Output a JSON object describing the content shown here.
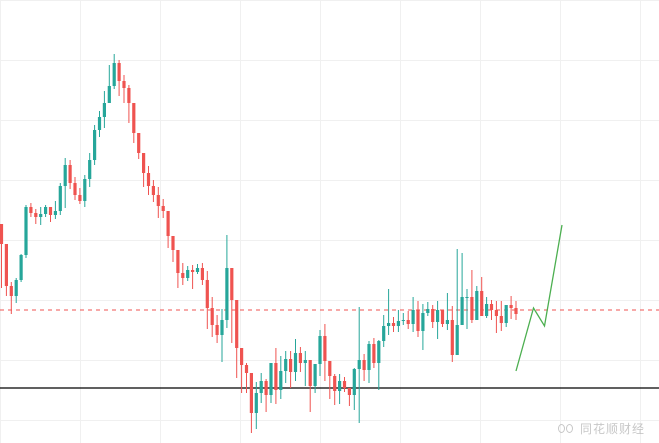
{
  "chart_data": {
    "type": "candlestick",
    "title": "",
    "xlabel": "",
    "ylabel": "",
    "grid": true,
    "ylim": [
      0,
      443
    ],
    "colors": {
      "up": "#26a69a",
      "down": "#ef5350",
      "grid": "#f0f0f0",
      "reference_line": "#ef5350",
      "support_line": "#000000",
      "projection": "#4caf50"
    },
    "reference_line": {
      "value": 133,
      "style": "dashed"
    },
    "support_line": {
      "value": 55,
      "style": "solid"
    },
    "candles": [
      [
        219,
        199,
        205,
        155
      ],
      [
        199,
        157,
        173,
        147
      ],
      [
        157,
        147,
        161,
        129
      ],
      [
        147,
        163,
        165,
        140
      ],
      [
        163,
        188,
        189,
        161
      ],
      [
        188,
        236,
        238,
        185
      ],
      [
        236,
        230,
        240,
        226
      ],
      [
        230,
        226,
        234,
        219
      ],
      [
        226,
        229,
        236,
        218
      ],
      [
        229,
        236,
        238,
        226
      ],
      [
        236,
        228,
        232,
        221
      ],
      [
        228,
        232,
        242,
        224
      ],
      [
        232,
        257,
        260,
        228
      ],
      [
        257,
        278,
        285,
        235
      ],
      [
        278,
        260,
        283,
        254
      ],
      [
        260,
        248,
        266,
        243
      ],
      [
        248,
        242,
        255,
        239
      ],
      [
        242,
        264,
        268,
        236
      ],
      [
        264,
        283,
        290,
        256
      ],
      [
        283,
        313,
        318,
        278
      ],
      [
        313,
        326,
        332,
        306
      ],
      [
        326,
        340,
        352,
        315
      ],
      [
        340,
        357,
        378,
        342
      ],
      [
        357,
        380,
        389,
        354
      ],
      [
        380,
        362,
        383,
        347
      ],
      [
        362,
        355,
        368,
        340
      ],
      [
        355,
        340,
        358,
        320
      ],
      [
        340,
        310,
        326,
        300
      ],
      [
        310,
        290,
        305,
        284
      ],
      [
        290,
        270,
        286,
        256
      ],
      [
        270,
        257,
        277,
        248
      ],
      [
        257,
        248,
        263,
        241
      ],
      [
        248,
        237,
        256,
        225
      ],
      [
        237,
        232,
        244,
        225
      ],
      [
        232,
        207,
        219,
        195
      ],
      [
        207,
        193,
        202,
        181
      ],
      [
        193,
        170,
        180,
        155
      ],
      [
        170,
        165,
        180,
        158
      ],
      [
        165,
        173,
        177,
        162
      ],
      [
        173,
        171,
        178,
        154
      ],
      [
        171,
        175,
        179,
        169
      ],
      [
        175,
        163,
        180,
        158
      ],
      [
        163,
        135,
        172,
        114
      ],
      [
        135,
        118,
        146,
        106
      ],
      [
        118,
        108,
        128,
        100
      ],
      [
        108,
        123,
        134,
        81
      ],
      [
        123,
        175,
        208,
        115
      ],
      [
        175,
        143,
        155,
        100
      ],
      [
        143,
        95,
        108,
        65
      ],
      [
        95,
        78,
        88,
        50
      ],
      [
        78,
        70,
        80,
        50
      ],
      [
        70,
        30,
        60,
        10
      ],
      [
        30,
        50,
        61,
        14
      ],
      [
        50,
        62,
        70,
        40
      ],
      [
        62,
        48,
        64,
        31
      ],
      [
        48,
        80,
        72,
        40
      ],
      [
        80,
        53,
        95,
        39
      ],
      [
        53,
        72,
        87,
        44
      ],
      [
        72,
        84,
        92,
        60
      ],
      [
        84,
        71,
        92,
        55
      ],
      [
        71,
        90,
        104,
        62
      ],
      [
        90,
        80,
        96,
        71
      ],
      [
        80,
        83,
        92,
        57
      ],
      [
        83,
        57,
        75,
        31
      ],
      [
        57,
        79,
        70,
        50
      ],
      [
        79,
        107,
        113,
        67
      ],
      [
        107,
        82,
        119,
        62
      ],
      [
        82,
        67,
        80,
        44
      ],
      [
        67,
        52,
        69,
        38
      ],
      [
        52,
        62,
        69,
        39
      ],
      [
        62,
        55,
        66,
        51
      ],
      [
        55,
        48,
        54,
        37
      ],
      [
        48,
        74,
        75,
        33
      ],
      [
        74,
        83,
        136,
        20
      ],
      [
        83,
        73,
        89,
        62
      ],
      [
        73,
        99,
        102,
        60
      ],
      [
        99,
        80,
        105,
        75
      ],
      [
        80,
        102,
        103,
        53
      ],
      [
        102,
        117,
        128,
        96
      ],
      [
        117,
        120,
        154,
        108
      ],
      [
        120,
        117,
        126,
        111
      ],
      [
        117,
        122,
        133,
        111
      ],
      [
        122,
        123,
        130,
        118
      ],
      [
        123,
        119,
        132,
        114
      ],
      [
        119,
        133,
        146,
        111
      ],
      [
        133,
        112,
        142,
        106
      ],
      [
        112,
        130,
        139,
        93
      ],
      [
        130,
        134,
        141,
        127
      ],
      [
        134,
        121,
        138,
        115
      ],
      [
        121,
        133,
        142,
        104
      ],
      [
        133,
        119,
        130,
        116
      ],
      [
        119,
        123,
        150,
        113
      ],
      [
        123,
        88,
        137,
        81
      ],
      [
        88,
        118,
        194,
        110
      ],
      [
        118,
        146,
        190,
        142
      ],
      [
        146,
        146,
        154,
        114
      ],
      [
        146,
        123,
        173,
        120
      ],
      [
        123,
        152,
        157,
        138
      ],
      [
        152,
        127,
        166,
        130
      ],
      [
        127,
        139,
        146,
        125
      ],
      [
        139,
        133,
        143,
        123
      ],
      [
        133,
        127,
        142,
        110
      ],
      [
        127,
        120,
        142,
        112
      ],
      [
        120,
        138,
        137,
        116
      ],
      [
        138,
        135,
        147,
        124
      ],
      [
        135,
        129,
        142,
        123
      ]
    ],
    "projection": [
      [
        185,
        72
      ],
      [
        193,
        135
      ],
      [
        198,
        117
      ],
      [
        206,
        218
      ]
    ]
  },
  "watermark": {
    "text": "同花顺财经",
    "logo": "eyes-logo-icon"
  }
}
